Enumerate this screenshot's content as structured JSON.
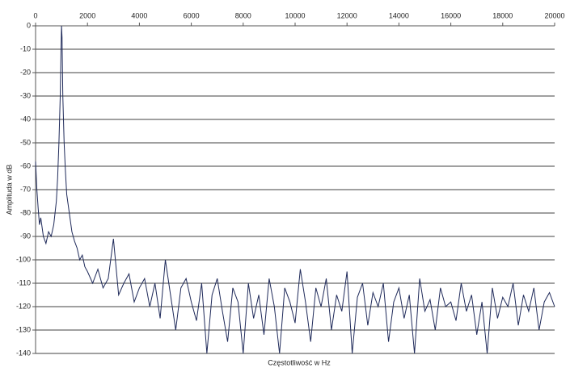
{
  "chart_data": {
    "type": "line",
    "x_label": "Częstotliwość w Hz",
    "y_label": "Amplituda w dB",
    "x": [
      0,
      50,
      100,
      150,
      200,
      300,
      400,
      500,
      600,
      700,
      800,
      850,
      900,
      950,
      980,
      1000,
      1020,
      1050,
      1100,
      1150,
      1200,
      1300,
      1400,
      1500,
      1600,
      1700,
      1800,
      1900,
      2000,
      2200,
      2400,
      2600,
      2800,
      3000,
      3200,
      3400,
      3600,
      3800,
      4000,
      4200,
      4400,
      4600,
      4800,
      5000,
      5200,
      5400,
      5600,
      5800,
      6000,
      6200,
      6400,
      6600,
      6800,
      7000,
      7200,
      7400,
      7600,
      7800,
      8000,
      8200,
      8400,
      8600,
      8800,
      9000,
      9200,
      9400,
      9600,
      9800,
      10000,
      10200,
      10400,
      10600,
      10800,
      11000,
      11200,
      11400,
      11600,
      11800,
      12000,
      12200,
      12400,
      12600,
      12800,
      13000,
      13200,
      13400,
      13600,
      13800,
      14000,
      14200,
      14400,
      14600,
      14800,
      15000,
      15200,
      15400,
      15600,
      15800,
      16000,
      16200,
      16400,
      16600,
      16800,
      17000,
      17200,
      17400,
      17600,
      17800,
      18000,
      18200,
      18400,
      18600,
      18800,
      19000,
      19200,
      19400,
      19600,
      19800,
      20000
    ],
    "series": [
      {
        "color": "#1f2a5a",
        "values": [
          -58,
          -70,
          -78,
          -85,
          -82,
          -90,
          -93,
          -88,
          -90,
          -85,
          -75,
          -65,
          -50,
          -30,
          -10,
          0,
          -5,
          -30,
          -50,
          -62,
          -72,
          -80,
          -88,
          -92,
          -95,
          -100,
          -98,
          -103,
          -105,
          -110,
          -104,
          -112,
          -108,
          -91,
          -115,
          -110,
          -106,
          -118,
          -112,
          -108,
          -120,
          -110,
          -125,
          -100,
          -115,
          -130,
          -112,
          -108,
          -118,
          -126,
          -110,
          -140,
          -115,
          -108,
          -122,
          -135,
          -112,
          -118,
          -140,
          -110,
          -125,
          -115,
          -132,
          -108,
          -120,
          -140,
          -112,
          -118,
          -127,
          -104,
          -118,
          -135,
          -112,
          -120,
          -108,
          -130,
          -115,
          -122,
          -105,
          -140,
          -116,
          -110,
          -128,
          -114,
          -120,
          -110,
          -135,
          -118,
          -112,
          -125,
          -115,
          -140,
          -108,
          -122,
          -117,
          -130,
          -112,
          -120,
          -118,
          -126,
          -110,
          -122,
          -115,
          -132,
          -118,
          -140,
          -112,
          -125,
          -116,
          -120,
          -110,
          -128,
          -115,
          -122,
          -112,
          -130,
          -118,
          -114,
          -120
        ]
      }
    ],
    "xlim": [
      0,
      20000
    ],
    "xticks": [
      0,
      2000,
      4000,
      6000,
      8000,
      10000,
      12000,
      14000,
      16000,
      18000,
      20000
    ],
    "ylim": [
      -140,
      0
    ],
    "yticks": [
      0,
      -10,
      -20,
      -30,
      -40,
      -50,
      -60,
      -70,
      -80,
      -90,
      -100,
      -110,
      -120,
      -130,
      -140
    ],
    "grid": true
  }
}
